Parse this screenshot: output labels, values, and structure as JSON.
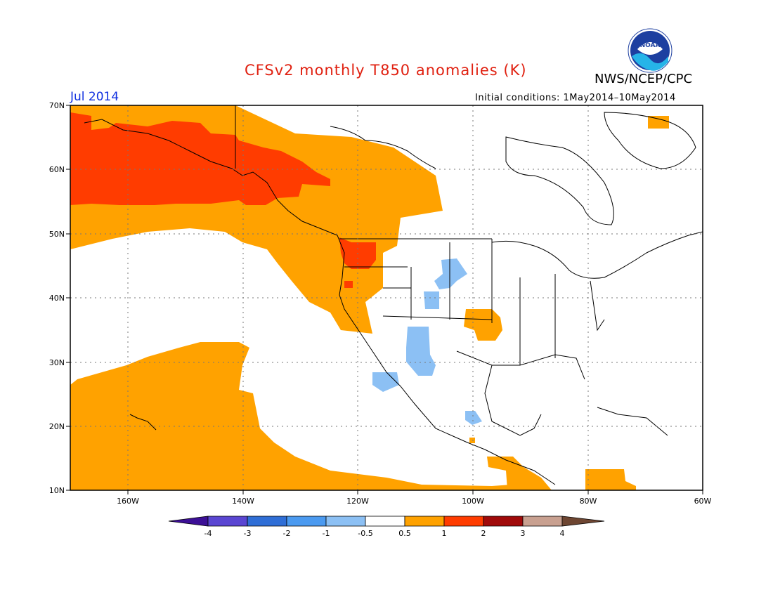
{
  "header": {
    "title": "CFSv2 monthly T850 anomalies (K)",
    "org": "NWS/NCEP/CPC",
    "month": "Jul 2014",
    "init_conditions": "Initial conditions: 1May2014–10May2014",
    "logo_text": "NOAA"
  },
  "map": {
    "lat_labels": [
      "70N",
      "60N",
      "50N",
      "40N",
      "30N",
      "20N",
      "10N"
    ],
    "lon_labels": [
      "160W",
      "140W",
      "120W",
      "100W",
      "80W",
      "60W"
    ],
    "colors": {
      "orange": "#ffa200",
      "red_orange": "#ff3c00",
      "light_blue": "#8cc0f4"
    }
  },
  "legend": {
    "tick_labels": [
      "-4",
      "-3",
      "-2",
      "-1",
      "-0.5",
      "0.5",
      "1",
      "2",
      "3",
      "4"
    ],
    "colors": [
      "#3c0f96",
      "#5a46d2",
      "#2f6ed6",
      "#4b9af0",
      "#8cc0f4",
      "#ffffff",
      "#ffa200",
      "#ff3c00",
      "#a00a0a",
      "#c8a090",
      "#6e4632"
    ]
  }
}
